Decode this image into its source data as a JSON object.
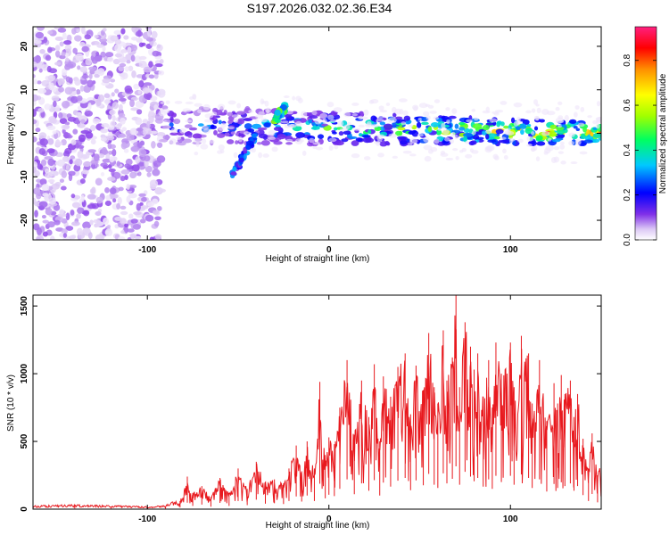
{
  "title": "S197.2026.032.02.36.E34",
  "chart_data": [
    {
      "type": "heatmap",
      "title": "S197.2026.032.02.36.E34",
      "xlabel": "Height of straight line (km)",
      "ylabel": "Frequency (Hz)",
      "xlim": [
        -163,
        150
      ],
      "ylim": [
        -24.5,
        24.5
      ],
      "xticks": [
        -100,
        0,
        100
      ],
      "yticks": [
        -20,
        -10,
        0,
        10,
        20
      ],
      "x_tick_labels": [
        "-100",
        "0",
        "100"
      ],
      "y_tick_labels": [
        "-20",
        "-10",
        "0",
        "10",
        "20"
      ],
      "colorbar": {
        "label": "Normalized spectral amplitude",
        "range": [
          0.0,
          0.95
        ],
        "ticks": [
          0.0,
          0.2,
          0.4,
          0.6,
          0.8
        ],
        "tick_labels": [
          "0.0",
          "0.2",
          "0.4",
          "0.6",
          "0.8"
        ],
        "colormap": [
          "#ffffff",
          "#dcc8f5",
          "#8030e8",
          "#0000ff",
          "#00c8ff",
          "#00ff60",
          "#a0ff00",
          "#ffff00",
          "#ff9000",
          "#ff0000",
          "#ff2080"
        ]
      },
      "features": [
        {
          "name": "noise_region",
          "x_range": [
            -163,
            -92
          ],
          "y_range": [
            -24.5,
            24.5
          ],
          "amplitude": 0.12
        },
        {
          "name": "main_band",
          "x_range": [
            -92,
            150
          ],
          "center_freq_start": 2,
          "center_freq_end": 0,
          "amplitude_start": 0.3,
          "amplitude_end": 0.85
        },
        {
          "name": "descending_branch",
          "x_range": [
            -54,
            -40
          ],
          "freq_range": [
            -10,
            0
          ],
          "amplitude": 0.3
        },
        {
          "name": "ascending_blob",
          "x_range": [
            -30,
            -24
          ],
          "freq_range": [
            3,
            6
          ],
          "amplitude": 0.45
        }
      ]
    },
    {
      "type": "line",
      "xlabel": "Height of straight line (km)",
      "ylabel": "SNR (10 * v/v)",
      "xlim": [
        -163,
        150
      ],
      "ylim": [
        0,
        1580
      ],
      "xticks": [
        -100,
        0,
        100
      ],
      "yticks": [
        0,
        500,
        1000,
        1500
      ],
      "x_tick_labels": [
        "-100",
        "0",
        "100"
      ],
      "y_tick_labels": [
        "0",
        "500",
        "1000",
        "1500"
      ],
      "color": "#e8191e",
      "series": [
        {
          "name": "SNR",
          "x": [
            -163,
            -140,
            -120,
            -100,
            -90,
            -82,
            -78,
            -75,
            -70,
            -65,
            -60,
            -55,
            -50,
            -45,
            -40,
            -35,
            -30,
            -25,
            -22,
            -18,
            -15,
            -12,
            -8,
            -5,
            -2,
            0,
            3,
            6,
            10,
            14,
            18,
            22,
            25,
            28,
            30,
            34,
            38,
            42,
            45,
            48,
            52,
            55,
            58,
            60,
            63,
            65,
            68,
            70,
            72,
            75,
            78,
            80,
            82,
            85,
            88,
            90,
            92,
            95,
            100,
            102,
            106,
            110,
            112,
            116,
            120,
            124,
            126,
            128,
            130,
            133,
            135,
            137,
            140,
            143,
            145,
            148,
            150
          ],
          "values": [
            20,
            25,
            20,
            15,
            20,
            60,
            240,
            120,
            170,
            90,
            230,
            120,
            300,
            150,
            350,
            200,
            220,
            190,
            300,
            470,
            280,
            500,
            300,
            940,
            400,
            530,
            480,
            750,
            1100,
            550,
            950,
            680,
            1070,
            500,
            980,
            830,
            1050,
            1150,
            700,
            1060,
            880,
            1300,
            900,
            780,
            1320,
            950,
            1120,
            1580,
            900,
            1380,
            1200,
            1030,
            1150,
            830,
            1100,
            750,
            1230,
            1000,
            1230,
            900,
            1280,
            1150,
            780,
            1100,
            650,
            930,
            780,
            990,
            850,
            950,
            680,
            850,
            520,
            300,
            560,
            250,
            450
          ]
        }
      ]
    }
  ]
}
